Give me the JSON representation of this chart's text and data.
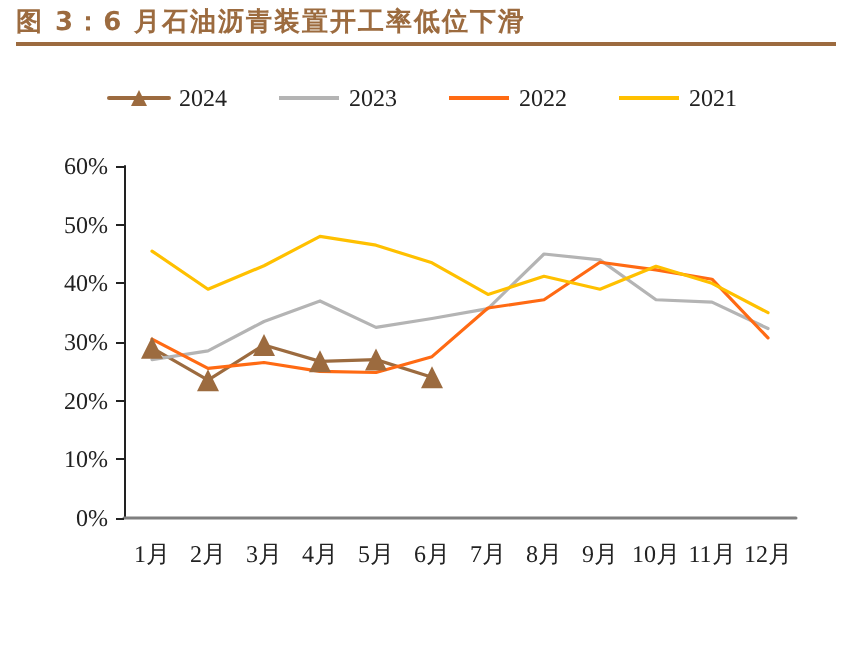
{
  "chart_data": {
    "type": "line",
    "title": "图 3：6 月石油沥青装置开工率低位下滑",
    "categories": [
      "1月",
      "2月",
      "3月",
      "4月",
      "5月",
      "6月",
      "7月",
      "8月",
      "9月",
      "10月",
      "11月",
      "12月"
    ],
    "series": [
      {
        "name": "2024",
        "color": "#9c6b3f",
        "marker": "triangle",
        "values": [
          29,
          23.5,
          29.5,
          26.7,
          27,
          24,
          null,
          null,
          null,
          null,
          null,
          null
        ]
      },
      {
        "name": "2023",
        "color": "#b4b4b4",
        "marker": "none",
        "values": [
          27,
          28.5,
          33.5,
          37,
          32.5,
          34,
          35.7,
          45,
          44,
          37.2,
          36.8,
          32.3
        ]
      },
      {
        "name": "2022",
        "color": "#ff6a13",
        "marker": "none",
        "values": [
          30.5,
          25.5,
          26.5,
          25,
          24.8,
          27.5,
          35.8,
          37.2,
          43.6,
          42.3,
          40.7,
          30.7
        ]
      },
      {
        "name": "2021",
        "color": "#ffc000",
        "marker": "none",
        "values": [
          45.5,
          39,
          43,
          48,
          46.5,
          43.5,
          38.1,
          41.2,
          39,
          42.9,
          40,
          35
        ]
      }
    ],
    "ylim": [
      0,
      60
    ],
    "yticks": [
      {
        "value": 0,
        "label": "0%"
      },
      {
        "value": 10,
        "label": "10%"
      },
      {
        "value": 20,
        "label": "20%"
      },
      {
        "value": 30,
        "label": "30%"
      },
      {
        "value": 40,
        "label": "40%"
      },
      {
        "value": 50,
        "label": "50%"
      },
      {
        "value": 60,
        "label": "60%"
      }
    ],
    "grid": false,
    "legend": "top",
    "line_style": "solid"
  }
}
